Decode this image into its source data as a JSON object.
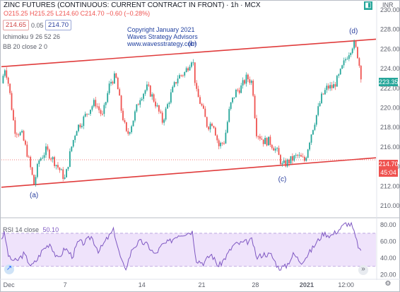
{
  "header": {
    "title": "ZINC FUTURES (CONTINUOUS: CURRENT CONTRACT IN FRONT) · 1h · MCX",
    "ohlc": "O215.25 H215.25 L214.60 C214.70 −0.60 (−0.28%)",
    "bid": "214.65",
    "spread": "0.05",
    "ask": "214.70",
    "indicators": [
      "Ichimoku 9 26 52 26",
      "BB 20 close 2 0"
    ],
    "currency": "INR"
  },
  "copyright": {
    "line1": "Copyright January 2021",
    "line2": "Waves Strategy Advisors",
    "line3": "www.wavesstrategy.com"
  },
  "rsi_label": {
    "name": "RSI 14 close",
    "value": "50.10"
  },
  "price_tags": {
    "last": "223.35",
    "current": "214.70",
    "countdown": "45:04"
  },
  "colors": {
    "up": "#26a69a",
    "down": "#ef5350",
    "channel": "#e03c3c",
    "rsi": "#7e57c2",
    "rsi_fill": "#efe3fb",
    "label_blue": "#2a3f9e"
  },
  "icons": [
    "chart-style-icon",
    "settings-icon",
    "scroll-right-icon",
    "time-zone-icon"
  ],
  "chart_data": [
    {
      "type": "candlestick",
      "axis_position": "right",
      "ylim": [
        209,
        231
      ],
      "ytick_labels": [
        "210.00",
        "212.00",
        "214.00",
        "216.00",
        "218.00",
        "220.00",
        "222.00",
        "224.00",
        "226.00",
        "228.00",
        "230.00"
      ],
      "xtick_labels": [
        "Dec",
        "7",
        "14",
        "21",
        "28",
        "2021",
        "12:00"
      ],
      "channel_lines": [
        {
          "from": [
            0,
            224.2
          ],
          "to": [
            1,
            227.0
          ]
        },
        {
          "from": [
            0,
            211.9
          ],
          "to": [
            1,
            214.9
          ]
        }
      ],
      "current_price_line": 214.7,
      "wave_labels": [
        {
          "text": "(a)",
          "at": 0.087,
          "price": 211.9
        },
        {
          "text": "(b)",
          "at": 0.51,
          "price": 225.6
        },
        {
          "text": "(c)",
          "at": 0.75,
          "price": 213.5
        },
        {
          "text": "(d)",
          "at": 0.94,
          "price": 226.9
        }
      ],
      "close_path": [
        [
          0.0,
          222.5
        ],
        [
          0.01,
          224.2
        ],
        [
          0.02,
          222.2
        ],
        [
          0.035,
          217.8
        ],
        [
          0.055,
          217.2
        ],
        [
          0.07,
          215.2
        ],
        [
          0.087,
          212.2
        ],
        [
          0.1,
          214.6
        ],
        [
          0.12,
          215.7
        ],
        [
          0.14,
          214.6
        ],
        [
          0.155,
          213.7
        ],
        [
          0.17,
          212.7
        ],
        [
          0.185,
          215.7
        ],
        [
          0.2,
          217.9
        ],
        [
          0.215,
          218.6
        ],
        [
          0.23,
          219.6
        ],
        [
          0.25,
          220.6
        ],
        [
          0.27,
          219.1
        ],
        [
          0.29,
          222.6
        ],
        [
          0.305,
          223.2
        ],
        [
          0.32,
          219.8
        ],
        [
          0.335,
          217.1
        ],
        [
          0.35,
          218.6
        ],
        [
          0.37,
          221.1
        ],
        [
          0.39,
          222.1
        ],
        [
          0.41,
          220.6
        ],
        [
          0.43,
          218.6
        ],
        [
          0.45,
          221.1
        ],
        [
          0.47,
          223.1
        ],
        [
          0.49,
          223.6
        ],
        [
          0.51,
          225.2
        ],
        [
          0.52,
          221.6
        ],
        [
          0.535,
          220.1
        ],
        [
          0.55,
          218.1
        ],
        [
          0.565,
          218.6
        ],
        [
          0.58,
          216.1
        ],
        [
          0.595,
          216.6
        ],
        [
          0.61,
          220.1
        ],
        [
          0.625,
          221.6
        ],
        [
          0.64,
          222.1
        ],
        [
          0.655,
          223.1
        ],
        [
          0.67,
          222.6
        ],
        [
          0.68,
          217.6
        ],
        [
          0.7,
          216.6
        ],
        [
          0.715,
          216.6
        ],
        [
          0.735,
          215.6
        ],
        [
          0.75,
          214.1
        ],
        [
          0.77,
          214.6
        ],
        [
          0.79,
          215.1
        ],
        [
          0.81,
          214.6
        ],
        [
          0.825,
          217.1
        ],
        [
          0.84,
          219.1
        ],
        [
          0.855,
          221.1
        ],
        [
          0.87,
          222.1
        ],
        [
          0.885,
          222.1
        ],
        [
          0.9,
          223.1
        ],
        [
          0.92,
          225.1
        ],
        [
          0.94,
          226.6
        ],
        [
          0.95,
          225.6
        ],
        [
          0.96,
          223.35
        ]
      ]
    },
    {
      "type": "line",
      "name": "RSI 14 close",
      "ylim": [
        17,
        87
      ],
      "ytick_labels": [
        "20.00",
        "40.00",
        "60.00",
        "80.00"
      ],
      "bands": [
        30,
        70
      ],
      "values": [
        [
          0.0,
          64
        ],
        [
          0.008,
          70
        ],
        [
          0.02,
          40
        ],
        [
          0.04,
          36
        ],
        [
          0.06,
          45
        ],
        [
          0.08,
          30
        ],
        [
          0.095,
          38
        ],
        [
          0.11,
          50
        ],
        [
          0.13,
          58
        ],
        [
          0.15,
          38
        ],
        [
          0.17,
          52
        ],
        [
          0.19,
          42
        ],
        [
          0.205,
          60
        ],
        [
          0.22,
          58
        ],
        [
          0.24,
          66
        ],
        [
          0.26,
          48
        ],
        [
          0.28,
          62
        ],
        [
          0.3,
          74
        ],
        [
          0.315,
          45
        ],
        [
          0.33,
          25
        ],
        [
          0.35,
          52
        ],
        [
          0.37,
          60
        ],
        [
          0.39,
          56
        ],
        [
          0.41,
          44
        ],
        [
          0.43,
          56
        ],
        [
          0.45,
          60
        ],
        [
          0.47,
          68
        ],
        [
          0.49,
          70
        ],
        [
          0.51,
          72
        ],
        [
          0.52,
          38
        ],
        [
          0.54,
          34
        ],
        [
          0.56,
          45
        ],
        [
          0.58,
          30
        ],
        [
          0.6,
          42
        ],
        [
          0.62,
          56
        ],
        [
          0.64,
          58
        ],
        [
          0.66,
          60
        ],
        [
          0.67,
          62
        ],
        [
          0.68,
          40
        ],
        [
          0.7,
          45
        ],
        [
          0.72,
          44
        ],
        [
          0.74,
          28
        ],
        [
          0.76,
          30
        ],
        [
          0.78,
          45
        ],
        [
          0.8,
          35
        ],
        [
          0.82,
          45
        ],
        [
          0.84,
          58
        ],
        [
          0.86,
          70
        ],
        [
          0.88,
          67
        ],
        [
          0.9,
          74
        ],
        [
          0.92,
          82
        ],
        [
          0.935,
          80
        ],
        [
          0.95,
          58
        ],
        [
          0.96,
          46
        ]
      ]
    }
  ]
}
